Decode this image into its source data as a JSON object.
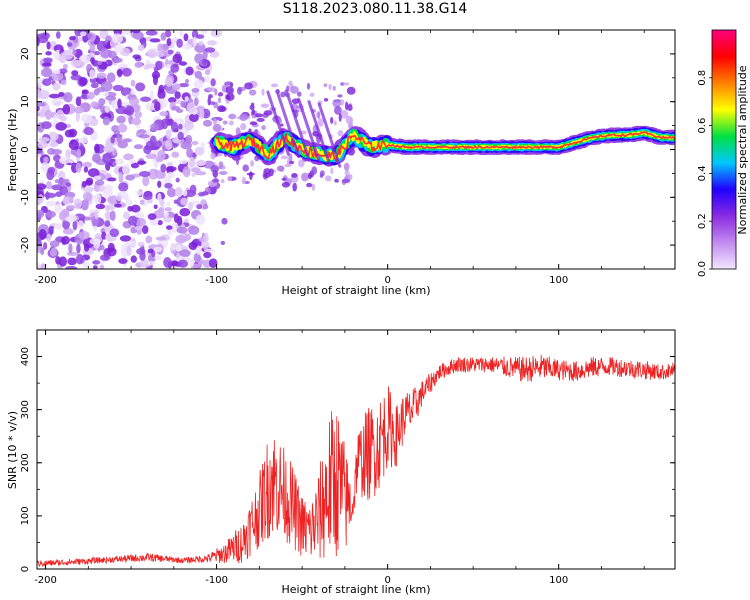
{
  "title": "S118.2023.080.11.38.G14",
  "colors": {
    "snr_line": "#ee2222",
    "axis": "#000000",
    "colormap": [
      "#f2e6ff",
      "#c28af0",
      "#8a2be2",
      "#2000ff",
      "#00c8ff",
      "#00e040",
      "#ffff00",
      "#ff8000",
      "#ff0000",
      "#ff0080"
    ]
  },
  "chart_data": [
    {
      "type": "heatmap",
      "name": "spectrogram",
      "title": "",
      "xlabel": "Height of straight line (km)",
      "ylabel": "Frequency (Hz)",
      "xlim": [
        -205,
        168
      ],
      "ylim": [
        -25,
        25
      ],
      "x_ticks": [
        {
          "value": -200,
          "label": "-200"
        },
        {
          "value": -100,
          "label": "-100"
        },
        {
          "value": 0,
          "label": "0"
        },
        {
          "value": 100,
          "label": "100"
        }
      ],
      "y_ticks": [
        {
          "value": 20,
          "label": "20"
        },
        {
          "value": 10,
          "label": "10"
        },
        {
          "value": 0,
          "label": "0"
        },
        {
          "value": -10,
          "label": "-10"
        },
        {
          "value": -20,
          "label": "-20"
        }
      ],
      "ridge": {
        "description": "dominant spectral component frequency (Hz) vs height",
        "x": [
          -100,
          -90,
          -80,
          -70,
          -60,
          -50,
          -40,
          -30,
          -20,
          -10,
          0,
          10,
          20,
          40,
          60,
          80,
          100,
          110,
          120,
          130,
          140,
          150,
          160,
          168
        ],
        "y": [
          1.5,
          0.5,
          2.0,
          -1.0,
          2.5,
          0.0,
          -1.0,
          -1.5,
          3.0,
          0.5,
          1.0,
          0.5,
          0.5,
          0.5,
          0.5,
          0.5,
          0.5,
          1.5,
          2.5,
          3.0,
          3.0,
          3.5,
          2.5,
          2.5
        ]
      },
      "colorbar": {
        "label": "Normalized spectral amplitude",
        "range": [
          0,
          1
        ],
        "ticks": [
          {
            "value": 0.0,
            "label": "0.0"
          },
          {
            "value": 0.2,
            "label": "0.2"
          },
          {
            "value": 0.4,
            "label": "0.4"
          },
          {
            "value": 0.6,
            "label": "0.6"
          },
          {
            "value": 0.8,
            "label": "0.8"
          }
        ]
      }
    },
    {
      "type": "line",
      "name": "snr",
      "title": "",
      "xlabel": "Height of straight line (km)",
      "ylabel": "SNR (10 * v/v)",
      "xlim": [
        -205,
        168
      ],
      "ylim": [
        0,
        450
      ],
      "x_ticks": [
        {
          "value": -200,
          "label": "-200"
        },
        {
          "value": -100,
          "label": "-100"
        },
        {
          "value": 0,
          "label": "0"
        },
        {
          "value": 100,
          "label": "100"
        }
      ],
      "y_ticks": [
        {
          "value": 0,
          "label": "0"
        },
        {
          "value": 100,
          "label": "100"
        },
        {
          "value": 200,
          "label": "200"
        },
        {
          "value": 300,
          "label": "300"
        },
        {
          "value": 400,
          "label": "400"
        }
      ],
      "series": [
        {
          "name": "SNR",
          "x": [
            -205,
            -180,
            -160,
            -140,
            -120,
            -105,
            -95,
            -85,
            -75,
            -68,
            -62,
            -56,
            -50,
            -45,
            -40,
            -35,
            -30,
            -25,
            -20,
            -18,
            -12,
            -6,
            0,
            5,
            10,
            15,
            20,
            25,
            30,
            40,
            50,
            60,
            70,
            80,
            90,
            100,
            110,
            120,
            130,
            140,
            150,
            160,
            168
          ],
          "y": [
            10,
            14,
            18,
            22,
            16,
            20,
            30,
            50,
            110,
            170,
            150,
            120,
            80,
            70,
            100,
            150,
            170,
            130,
            120,
            200,
            215,
            230,
            270,
            250,
            290,
            300,
            330,
            350,
            370,
            385,
            385,
            385,
            380,
            375,
            380,
            375,
            372,
            380,
            382,
            378,
            375,
            370,
            375
          ],
          "noise_amplitude": [
            6,
            6,
            6,
            8,
            5,
            8,
            20,
            40,
            70,
            110,
            90,
            80,
            60,
            60,
            90,
            140,
            150,
            110,
            30,
            60,
            90,
            90,
            80,
            60,
            45,
            40,
            25,
            20,
            15,
            15,
            15,
            15,
            20,
            25,
            25,
            20,
            20,
            20,
            18,
            18,
            18,
            15,
            15
          ]
        }
      ]
    }
  ]
}
